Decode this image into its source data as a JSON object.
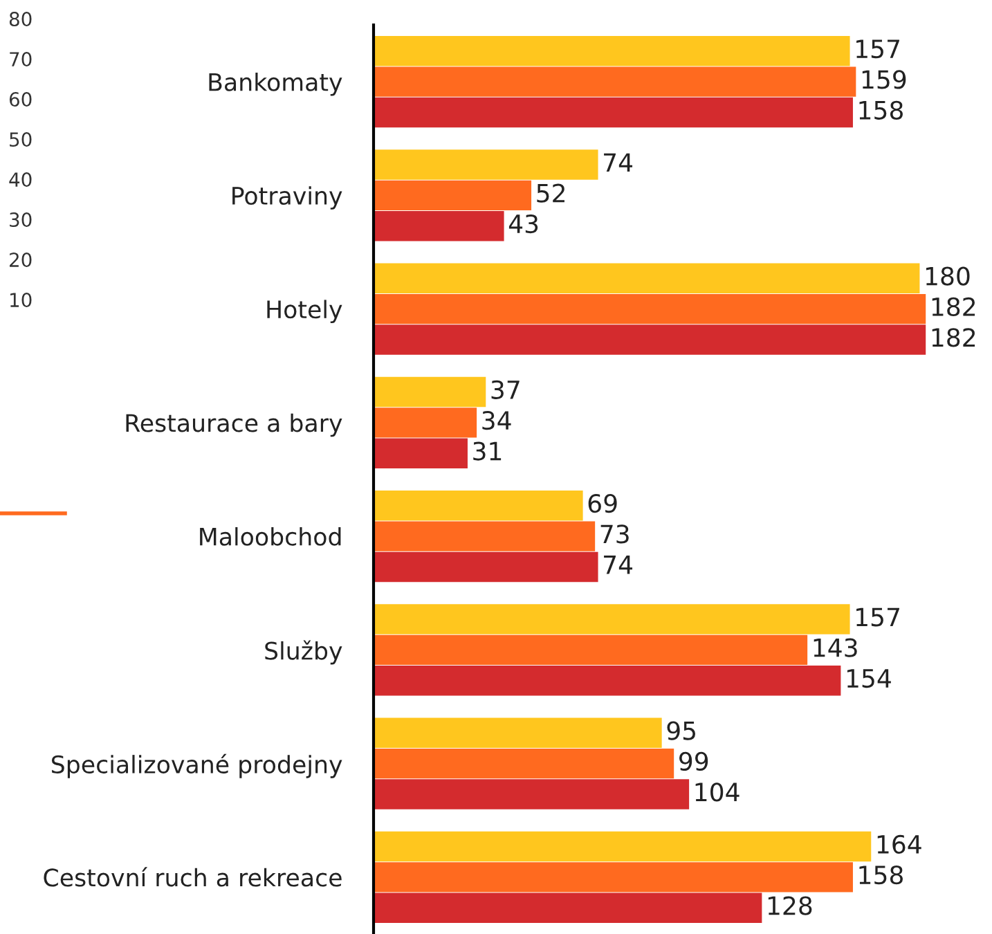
{
  "chart_data": {
    "type": "bar",
    "orientation": "horizontal",
    "data_labels": true,
    "legend": false,
    "grid": false,
    "categories": [
      "Bankomaty",
      "Potraviny",
      "Hotely",
      "Restaurace a bary",
      "Maloobchod",
      "Služby",
      "Specializované prodejny",
      "Cestovní ruch a rekreace"
    ],
    "series": [
      {
        "color": "#ffc61e",
        "values": [
          157,
          74,
          180,
          37,
          69,
          157,
          95,
          164
        ]
      },
      {
        "color": "#ff6a1f",
        "values": [
          159,
          52,
          182,
          34,
          73,
          143,
          99,
          158
        ]
      },
      {
        "color": "#d42b2e",
        "values": [
          158,
          43,
          182,
          31,
          74,
          154,
          104,
          128
        ]
      }
    ],
    "annotations": [
      "80",
      "70",
      "60",
      "50",
      "40",
      "30",
      "20",
      "10"
    ]
  }
}
